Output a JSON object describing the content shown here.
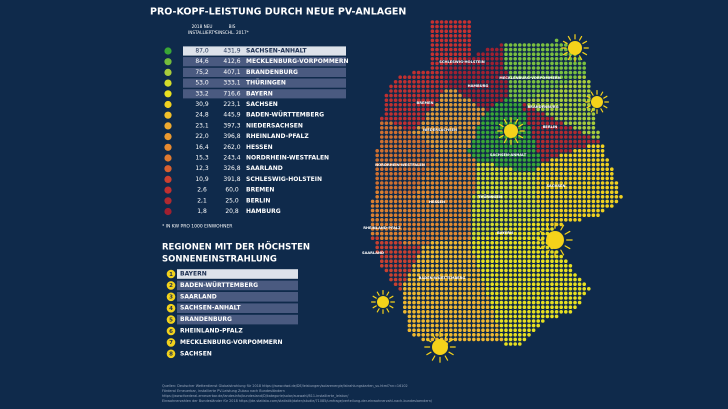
{
  "title": "PRO-KOPF-LEISTUNG DURCH NEUE PV-ANLAGEN",
  "table": {
    "headers": [
      [
        "2018 NEU",
        "INSTALLIERT*"
      ],
      [
        "BIS",
        "EINSCHL. 2017*"
      ]
    ],
    "rows": [
      {
        "color": "#3aa636",
        "new": "87,0",
        "total": "431,9",
        "state": "SACHSEN-ANHALT"
      },
      {
        "color": "#74bc3c",
        "new": "84,6",
        "total": "412,6",
        "state": "MECKLENBURG-VORPOMMERN"
      },
      {
        "color": "#a8cc3c",
        "new": "75,2",
        "total": "407,1",
        "state": "BRANDENBURG"
      },
      {
        "color": "#d4dc2c",
        "new": "53,0",
        "total": "333,1",
        "state": "THÜRINGEN"
      },
      {
        "color": "#e8e020",
        "new": "33,2",
        "total": "716,6",
        "state": "BAYERN"
      },
      {
        "color": "#f0d020",
        "new": "30,9",
        "total": "223,1",
        "state": "SACHSEN"
      },
      {
        "color": "#f2c02a",
        "new": "24,8",
        "total": "445,9",
        "state": "BADEN-WÜRTTEMBERG"
      },
      {
        "color": "#eeaa30",
        "new": "23,1",
        "total": "397,3",
        "state": "NIEDERSACHSEN"
      },
      {
        "color": "#ec9a30",
        "new": "22,0",
        "total": "396,8",
        "state": "RHEINLAND-PFALZ"
      },
      {
        "color": "#e88a30",
        "new": "16,4",
        "total": "262,0",
        "state": "HESSEN"
      },
      {
        "color": "#e07a30",
        "new": "15,3",
        "total": "243,4",
        "state": "NORDRHEIN-WESTFALEN"
      },
      {
        "color": "#d86030",
        "new": "12,3",
        "total": "326,8",
        "state": "SAARLAND"
      },
      {
        "color": "#cc4030",
        "new": "10,9",
        "total": "391,8",
        "state": "SCHLESWIG-HOLSTEIN"
      },
      {
        "color": "#c03030",
        "new": "2,6",
        "total": "60,0",
        "state": "BREMEN"
      },
      {
        "color": "#b02a30",
        "new": "2,1",
        "total": "25,0",
        "state": "BERLIN"
      },
      {
        "color": "#a02030",
        "new": "1,8",
        "total": "20,8",
        "state": "HAMBURG"
      }
    ],
    "footnote": "* IN KW PRO 1000 EINWOHNER"
  },
  "ranking": {
    "title": [
      "REGIONEN MIT DER HÖCHSTEN",
      "SONNENEINSTRAHLUNG"
    ],
    "items": [
      {
        "rank": "1",
        "state": "BAYERN"
      },
      {
        "rank": "2",
        "state": "BADEN-WÜRTTEMBERG"
      },
      {
        "rank": "3",
        "state": "SAARLAND"
      },
      {
        "rank": "4",
        "state": "SACHSEN-ANHALT"
      },
      {
        "rank": "5",
        "state": "BRANDENBURG"
      },
      {
        "rank": "6",
        "state": "RHEINLAND-PFALZ"
      },
      {
        "rank": "7",
        "state": "MECKLENBURG-VORPOMMERN"
      },
      {
        "rank": "8",
        "state": "SACHSEN"
      }
    ]
  },
  "map": {
    "labels": [
      "SCHLESWIG-HOLSTEIN",
      "HAMBURG",
      "MECKLENBURG-VORPOMMERN",
      "BREMEN",
      "BRANDENBURG",
      "NIEDERSACHSEN",
      "BERLIN",
      "SACHSEN-ANHALT",
      "NORDRHEIN-WESTFALEN",
      "THÜRINGEN",
      "SACHSEN",
      "HESSEN",
      "RHEINLAND-PFALZ",
      "SAARLAND",
      "BAYERN",
      "BADEN-WÜRTTEMBERG"
    ]
  },
  "sources": [
    "Quellen: Deutscher Wetterdienst Globalstrahlung für 2018 https://www.dwd.de/DE/leistungen/solarenergie/lstrahlungskarten_su.html?nn=16102",
    "Förderal Erneuerbar, installierte PV-Leistung Zubau nach Bundesländern",
    "https://www.foederal-erneuerbar.de/landesinfo/bundesland/D/kategorie/solar/auswahl/811-installierte_leistun/",
    "Einwohnerzahlen der Bundesländer für 2018 https://de.statista.com/statistik/daten/studie/71085/umfrage/verteilung-der-einwohnerzahl-nach-bundeslaendern/"
  ]
}
